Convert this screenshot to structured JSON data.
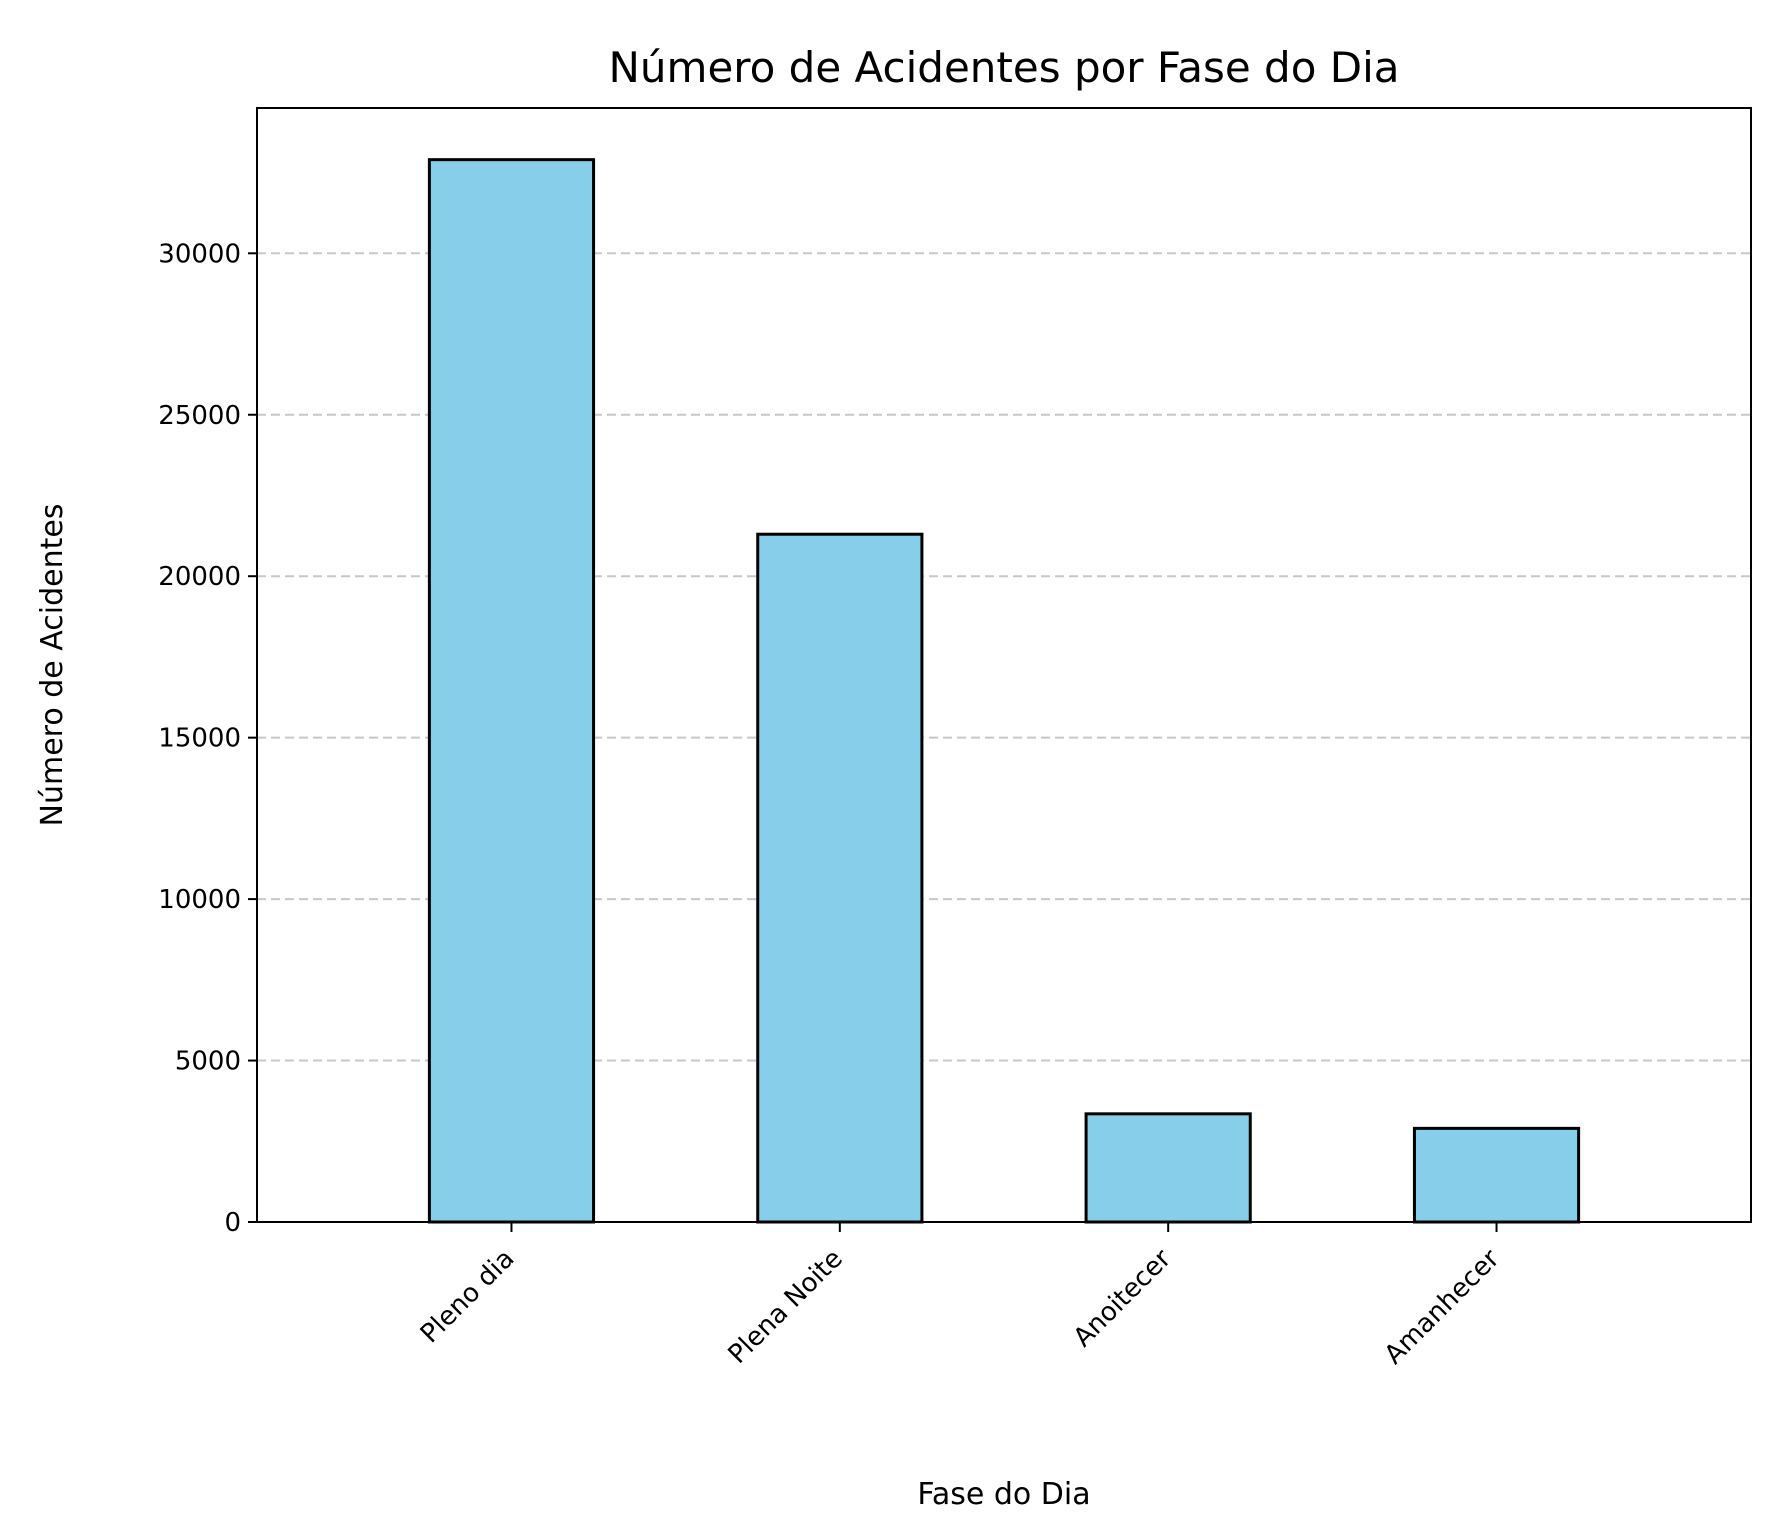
{
  "chart_data": {
    "type": "bar",
    "title": "Número de Acidentes por Fase do Dia",
    "xlabel": "Fase do Dia",
    "ylabel": "Número de Acidentes",
    "categories": [
      "Pleno dia",
      "Plena Noite",
      "Anoitecer",
      "Amanhecer"
    ],
    "values": [
      32900,
      21300,
      3350,
      2900
    ],
    "ylim": [
      0,
      34500
    ],
    "yticks": [
      0,
      5000,
      10000,
      15000,
      20000,
      25000,
      30000
    ],
    "grid": "y-dashed",
    "bar_color": "#87ceeb",
    "edge_color": "#000000",
    "grid_color": "#c8c8c8"
  }
}
